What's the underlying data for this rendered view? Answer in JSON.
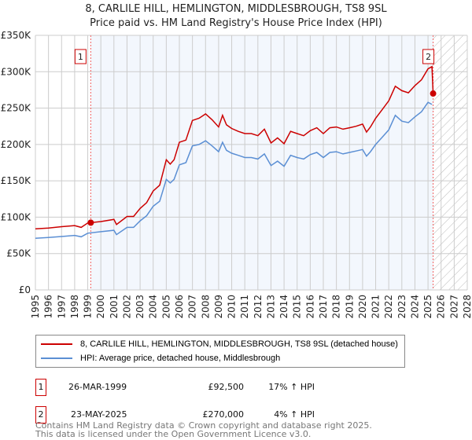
{
  "chart_data": {
    "type": "line",
    "title": "8, CARLILE HILL, HEMLINGTON, MIDDLESBROUGH, TS8 9SL",
    "subtitle": "Price paid vs. HM Land Registry's House Price Index (HPI)",
    "xlim": [
      1995,
      2028
    ],
    "ylim": [
      0,
      350000
    ],
    "x_ticks": [
      "1995",
      "1996",
      "1997",
      "1998",
      "1999",
      "2000",
      "2001",
      "2002",
      "2003",
      "2004",
      "2005",
      "2006",
      "2007",
      "2008",
      "2009",
      "2010",
      "2011",
      "2012",
      "2013",
      "2014",
      "2015",
      "2016",
      "2017",
      "2018",
      "2019",
      "2020",
      "2021",
      "2022",
      "2023",
      "2024",
      "2025",
      "2026",
      "2027",
      "2028"
    ],
    "y_ticks": [
      {
        "v": 0,
        "label": "£0"
      },
      {
        "v": 50000,
        "label": "£50K"
      },
      {
        "v": 100000,
        "label": "£100K"
      },
      {
        "v": 150000,
        "label": "£150K"
      },
      {
        "v": 200000,
        "label": "£200K"
      },
      {
        "v": 250000,
        "label": "£250K"
      },
      {
        "v": 300000,
        "label": "£300K"
      },
      {
        "v": 350000,
        "label": "£350K"
      }
    ],
    "x": [
      1995,
      1996,
      1997,
      1998,
      1998.5,
      1999,
      2000,
      2001,
      2001.2,
      2002,
      2002.5,
      2003,
      2003.5,
      2004,
      2004.5,
      2005,
      2005.3,
      2005.6,
      2006,
      2006.5,
      2007,
      2007.5,
      2008,
      2008.5,
      2009,
      2009.3,
      2009.6,
      2010,
      2010.5,
      2011,
      2011.5,
      2012,
      2012.5,
      2013,
      2013.5,
      2014,
      2014.5,
      2015,
      2015.5,
      2016,
      2016.5,
      2017,
      2017.5,
      2018,
      2018.5,
      2019,
      2019.5,
      2020,
      2020.3,
      2020.6,
      2021,
      2021.5,
      2022,
      2022.5,
      2023,
      2023.5,
      2024,
      2024.5,
      2025,
      2025.3
    ],
    "series": [
      {
        "name": "8, CARLILE HILL, HEMLINGTON, MIDDLESBROUGH, TS8 9SL (detached house)",
        "color": "#cc0000",
        "values": [
          84,
          85,
          87,
          88.5,
          86,
          92,
          94,
          97,
          90,
          101,
          101,
          112,
          120,
          136,
          144,
          179,
          173,
          179,
          203,
          206,
          233,
          236,
          242,
          234,
          224,
          240,
          227,
          222,
          218,
          215,
          215,
          212,
          221,
          202,
          209,
          201,
          218,
          215,
          212,
          219,
          223,
          215,
          223,
          224,
          221,
          223,
          225,
          228,
          217,
          224,
          236,
          248,
          260,
          280,
          274,
          271,
          281,
          289,
          304,
          307
        ],
        "extra": [
          [
            2025.39,
            270
          ]
        ]
      },
      {
        "name": "HPI: Average price, detached house, Middlesbrough",
        "color": "#5b8fd4",
        "values": [
          71,
          72,
          73.5,
          75,
          73,
          78,
          80,
          82,
          76,
          86,
          86,
          95,
          102,
          115,
          122,
          152,
          147,
          152,
          172,
          175,
          198,
          200,
          205,
          198,
          190,
          203,
          192,
          188,
          185,
          182,
          182,
          180,
          187,
          171,
          177,
          170,
          185,
          182,
          180,
          186,
          189,
          182,
          189,
          190,
          187,
          189,
          191,
          193,
          184,
          190,
          200,
          210,
          220,
          240,
          232,
          230,
          238,
          245,
          258,
          255
        ],
        "extra": []
      }
    ],
    "value_unit": "thousand GBP",
    "sales": [
      {
        "label": "1",
        "x": 1999.23,
        "y": 92.5
      },
      {
        "label": "2",
        "x": 2025.39,
        "y": 270
      }
    ],
    "future_from": 2025.39
  },
  "legend": {
    "items": [
      {
        "label": "8, CARLILE HILL, HEMLINGTON, MIDDLESBROUGH, TS8 9SL (detached house)",
        "color": "#cc0000"
      },
      {
        "label": "HPI: Average price, detached house, Middlesbrough",
        "color": "#5b8fd4"
      }
    ]
  },
  "transactions": [
    {
      "num": "1",
      "date": "26-MAR-1999",
      "price": "£92,500",
      "hpi": "17% ↑ HPI"
    },
    {
      "num": "2",
      "date": "23-MAY-2025",
      "price": "£270,000",
      "hpi": "4% ↑ HPI"
    }
  ],
  "footer": {
    "line1": "Contains HM Land Registry data © Crown copyright and database right 2025.",
    "line2": "This data is licensed under the Open Government Licence v3.0."
  }
}
